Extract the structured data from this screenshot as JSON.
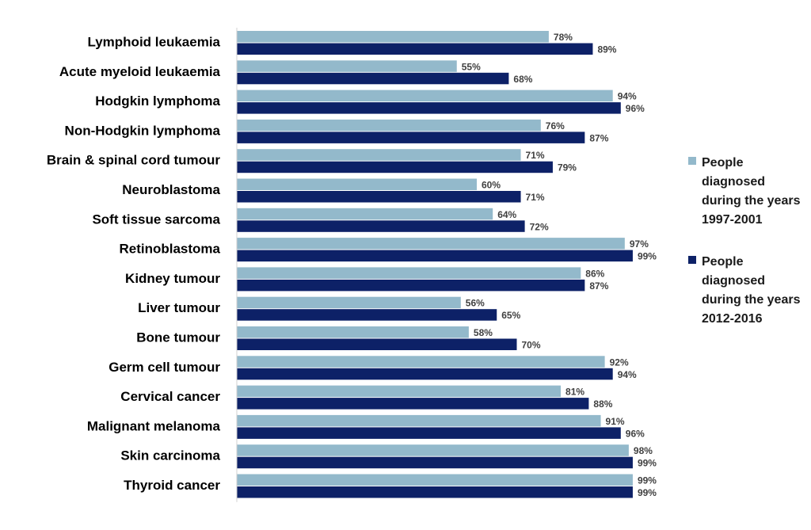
{
  "chart_data": {
    "type": "bar",
    "orientation": "horizontal",
    "title": "",
    "xlabel": "",
    "ylabel": "",
    "xlim": [
      0,
      100
    ],
    "grid": false,
    "legend_position": "right",
    "value_format": "percent",
    "categories": [
      "Lymphoid leukaemia",
      "Acute myeloid leukaemia",
      "Hodgkin lymphoma",
      "Non-Hodgkin lymphoma",
      "Brain & spinal cord tumour",
      "Neuroblastoma",
      "Soft tissue sarcoma",
      "Retinoblastoma",
      "Kidney tumour",
      "Liver tumour",
      "Bone tumour",
      "Germ cell tumour",
      "Cervical cancer",
      "Malignant melanoma",
      "Skin carcinoma",
      "Thyroid cancer"
    ],
    "series": [
      {
        "name": "People diagnosed during the years 1997-2001",
        "legend_lines": [
          "People",
          "diagnosed",
          "during the years",
          "1997-2001"
        ],
        "color": "#93b9cb",
        "values": [
          78,
          55,
          94,
          76,
          71,
          60,
          64,
          97,
          86,
          56,
          58,
          92,
          81,
          91,
          98,
          99
        ]
      },
      {
        "name": "People diagnosed during the years 2012-2016",
        "legend_lines": [
          "People",
          "diagnosed",
          "during the years",
          "2012-2016"
        ],
        "color": "#0d2167",
        "values": [
          89,
          68,
          96,
          87,
          79,
          71,
          72,
          99,
          87,
          65,
          70,
          94,
          88,
          96,
          99,
          99
        ]
      }
    ]
  }
}
